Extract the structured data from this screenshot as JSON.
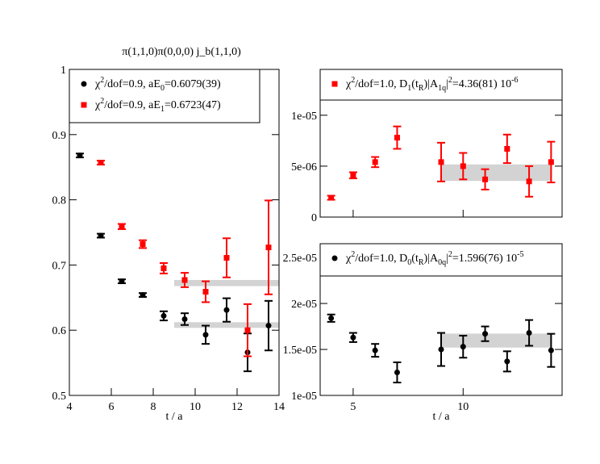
{
  "figure_title": "π(1,1,0)π(0,0,0)  j_b(1,1,0)",
  "chart_data": [
    {
      "id": "left",
      "type": "scatter",
      "title": "π(1,1,0)π(0,0,0)  j_b(1,1,0)",
      "xlabel": "t / a",
      "ylabel": "",
      "xlim": [
        4,
        14
      ],
      "ylim": [
        0.5,
        1.0
      ],
      "xticks": [
        4,
        6,
        8,
        10,
        12,
        14
      ],
      "yticks": [
        0.5,
        0.6,
        0.7,
        0.8,
        0.9,
        1.0
      ],
      "ytick_labels": [
        "0.5",
        "0.6",
        "0.7",
        "0.8",
        "0.9",
        "1"
      ],
      "legend_position": "top-left",
      "series": [
        {
          "name": "χ²/dof=0.9,  aE₀=0.6079(39)",
          "legend_parts": [
            "χ",
            "2",
            "/dof=0.9,  aE",
            "0",
            "=0.6079(39)"
          ],
          "color": "#000000",
          "marker": "circle",
          "x": [
            4.5,
            5.5,
            6.5,
            7.5,
            8.5,
            9.5,
            10.5,
            11.5,
            12.5,
            13.5
          ],
          "y": [
            0.868,
            0.745,
            0.675,
            0.654,
            0.622,
            0.617,
            0.593,
            0.631,
            0.566,
            0.607
          ],
          "err": [
            0.003,
            0.003,
            0.003,
            0.003,
            0.007,
            0.009,
            0.014,
            0.018,
            0.029,
            0.038
          ],
          "fit": {
            "value": 0.6079,
            "error": 0.0039,
            "x_range": [
              9,
              14
            ]
          }
        },
        {
          "name": "χ²/dof=0.9,  aE₁=0.6723(47)",
          "legend_parts": [
            "χ",
            "2",
            "/dof=0.9,  aE",
            "1",
            "=0.6723(47)"
          ],
          "color": "#ff0000",
          "marker": "square",
          "x": [
            5.5,
            6.5,
            7.5,
            8.5,
            9.5,
            10.5,
            11.5,
            12.5,
            13.5
          ],
          "y": [
            0.857,
            0.759,
            0.732,
            0.695,
            0.677,
            0.659,
            0.711,
            0.6,
            0.727
          ],
          "err": [
            0.003,
            0.004,
            0.006,
            0.008,
            0.011,
            0.016,
            0.03,
            0.04,
            0.072
          ],
          "fit": {
            "value": 0.6723,
            "error": 0.0047,
            "x_range": [
              9,
              14
            ]
          }
        }
      ]
    },
    {
      "id": "top-right",
      "type": "scatter",
      "xlabel": "",
      "xlim": [
        3.5,
        14.5
      ],
      "ylim": [
        0,
        1.45e-05
      ],
      "xticks": [
        5,
        10
      ],
      "yticks": [
        0,
        5e-06,
        1e-05
      ],
      "ytick_labels": [
        "0",
        "5e-06",
        "1e-05"
      ],
      "show_x_tick_labels": false,
      "legend_position": "top",
      "series": [
        {
          "name": "χ²/dof=1.0, D₁(t_R)|A₁q|²=4.36(81) 10⁻⁶",
          "legend_parts": [
            "χ",
            "2",
            "/dof=1.0, D",
            "1",
            "(t",
            "R",
            ")|A",
            "1q",
            "|",
            "2",
            "=4.36(81) 10",
            "-6"
          ],
          "color": "#ff0000",
          "marker": "square",
          "x": [
            4,
            5,
            6,
            7,
            9,
            10,
            11,
            12,
            13,
            14
          ],
          "y": [
            1.9e-06,
            4.1e-06,
            5.4e-06,
            7.8e-06,
            5.4e-06,
            5e-06,
            3.7e-06,
            6.7e-06,
            3.5e-06,
            5.4e-06
          ],
          "err": [
            2e-07,
            3e-07,
            5e-07,
            1.1e-06,
            1.9e-06,
            1.3e-06,
            1e-06,
            1.4e-06,
            1.5e-06,
            2e-06
          ],
          "fit": {
            "value": 4.36e-06,
            "error": 8.1e-07,
            "x_range": [
              9,
              14
            ]
          }
        }
      ]
    },
    {
      "id": "bottom-right",
      "type": "scatter",
      "xlabel": "t / a",
      "xlim": [
        3.5,
        14.5
      ],
      "ylim": [
        1e-05,
        2.65e-05
      ],
      "xticks": [
        5,
        10
      ],
      "yticks": [
        1e-05,
        1.5e-05,
        2e-05,
        2.5e-05
      ],
      "ytick_labels": [
        "1e-05",
        "1.5e-05",
        "2e-05",
        "2.5e-05"
      ],
      "legend_position": "top",
      "series": [
        {
          "name": "χ²/dof=1.0, D₀(t_R)|A₀q|²=1.596(76) 10⁻⁵",
          "legend_parts": [
            "χ",
            "2",
            "/dof=1.0, D",
            "0",
            "(t",
            "R",
            ")|A",
            "0q",
            "|",
            "2",
            "=1.596(76) 10",
            "-5"
          ],
          "color": "#000000",
          "marker": "circle",
          "x": [
            4,
            5,
            6,
            7,
            9,
            10,
            11,
            12,
            13,
            14
          ],
          "y": [
            1.84e-05,
            1.63e-05,
            1.49e-05,
            1.25e-05,
            1.5e-05,
            1.53e-05,
            1.67e-05,
            1.37e-05,
            1.68e-05,
            1.49e-05
          ],
          "err": [
            4e-07,
            5e-07,
            7e-07,
            1.1e-06,
            1.8e-06,
            1.2e-06,
            8e-07,
            1.1e-06,
            1.4e-06,
            1.8e-06
          ],
          "fit": {
            "value": 1.596e-05,
            "error": 7.6e-07,
            "x_range": [
              9,
              14
            ]
          }
        }
      ]
    }
  ]
}
